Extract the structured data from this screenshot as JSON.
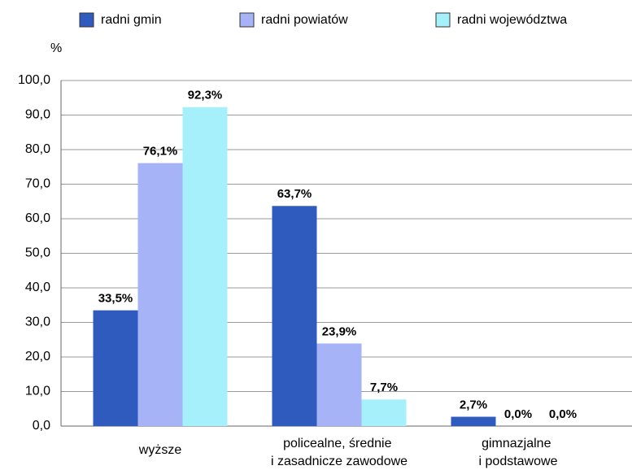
{
  "chart_data": {
    "type": "bar",
    "y_axis_label": "%",
    "categories": [
      "wyższe",
      "policealne, średnie\ni zasadnicze zawodowe",
      "gimnazjalne\ni podstawowe"
    ],
    "series": [
      {
        "name": "radni gmin",
        "color": "#2f5bbf",
        "values": [
          33.5,
          63.7,
          2.7
        ],
        "value_labels": [
          "33,5%",
          "63,7%",
          "2,7%"
        ]
      },
      {
        "name": "radni powiatów",
        "color": "#a6b4f7",
        "values": [
          76.1,
          23.9,
          0.0
        ],
        "value_labels": [
          "76,1%",
          "23,9%",
          "0,0%"
        ]
      },
      {
        "name": "radni województwa",
        "color": "#a6f0fc",
        "values": [
          92.3,
          7.7,
          0.0
        ],
        "value_labels": [
          "92,3%",
          "7,7%",
          "0,0%"
        ]
      }
    ],
    "ylim": [
      0,
      100
    ],
    "yticks": [
      {
        "value": 0,
        "label": "0,0"
      },
      {
        "value": 10,
        "label": "10,0"
      },
      {
        "value": 20,
        "label": "20,0"
      },
      {
        "value": 30,
        "label": "30,0"
      },
      {
        "value": 40,
        "label": "40,0"
      },
      {
        "value": 50,
        "label": "50,0"
      },
      {
        "value": 60,
        "label": "60,0"
      },
      {
        "value": 70,
        "label": "70,0"
      },
      {
        "value": 80,
        "label": "80,0"
      },
      {
        "value": 90,
        "label": "90,0"
      },
      {
        "value": 100,
        "label": "100,0"
      }
    ],
    "grid": true,
    "legend": "top"
  }
}
